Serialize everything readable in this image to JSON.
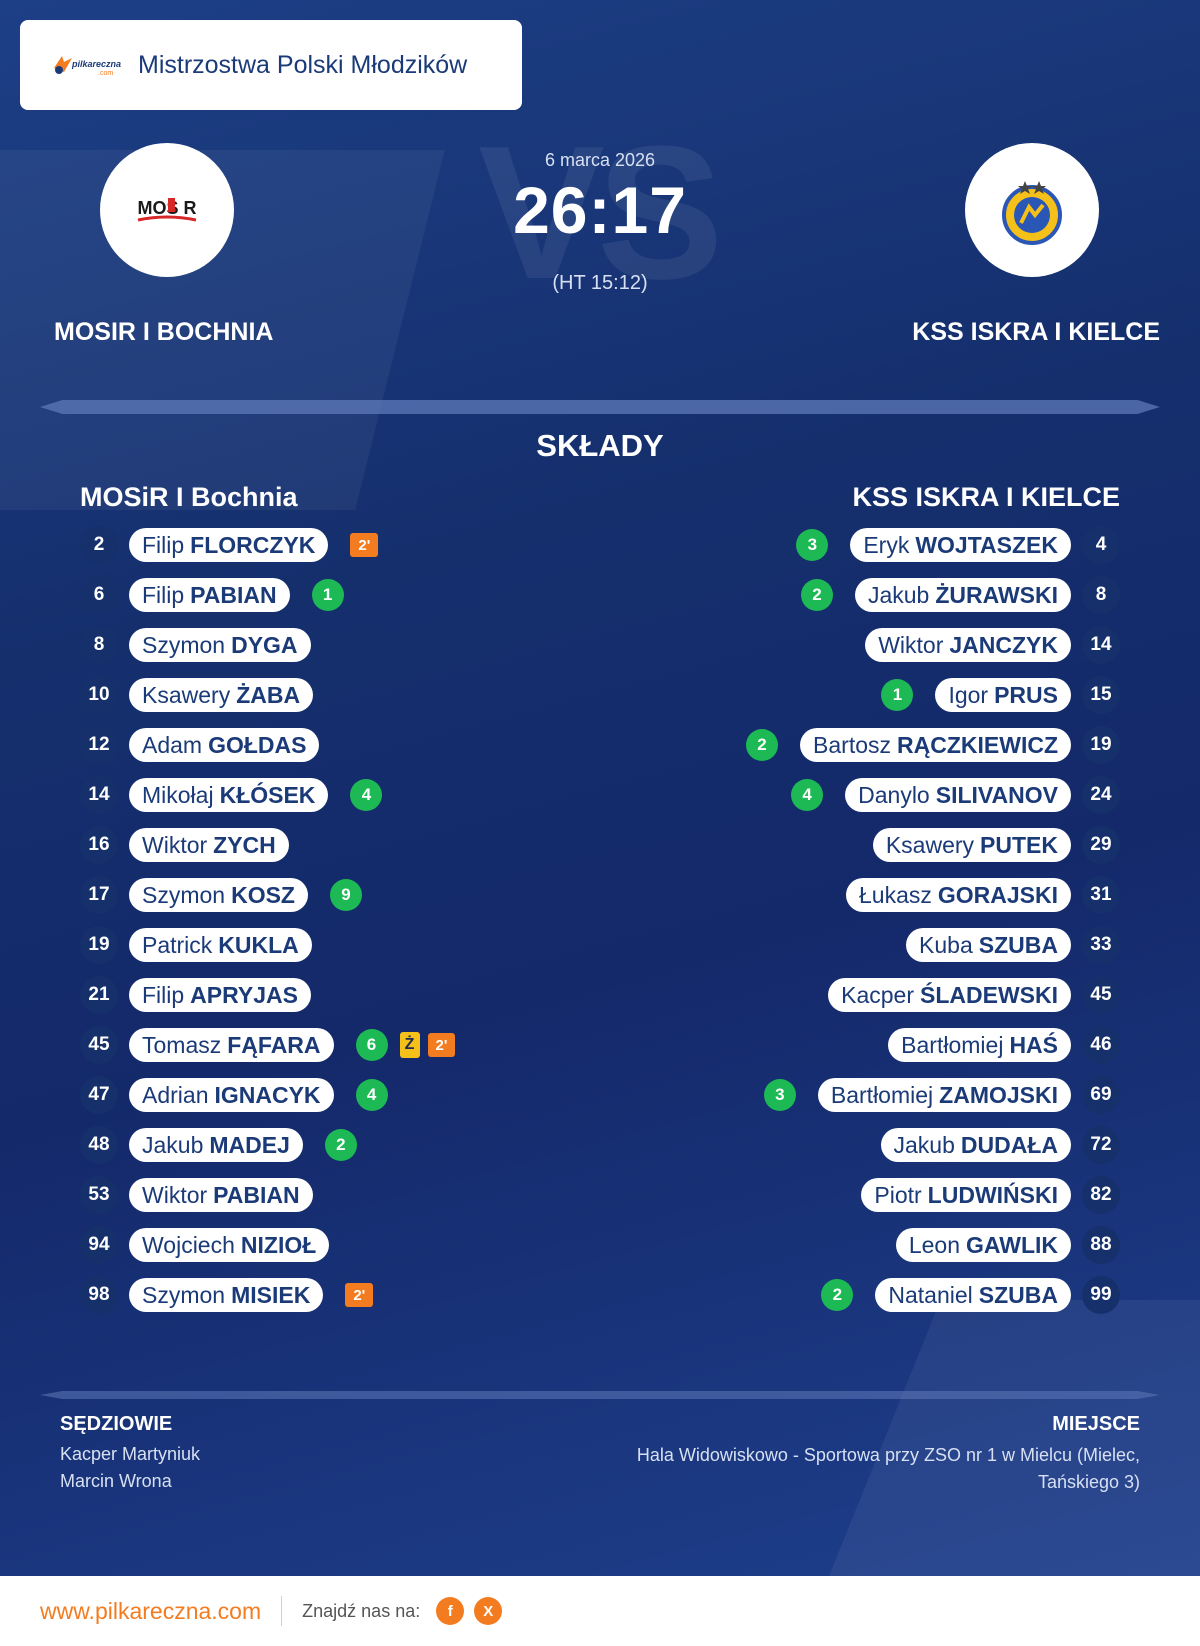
{
  "header": {
    "title": "Mistrzostwa Polski Młodzików",
    "logo_text": "pilkareczna .com"
  },
  "match": {
    "date": "6 marca 2026",
    "score": "26:17",
    "halftime": "(HT 15:12)",
    "bg_text": "VS"
  },
  "home": {
    "name": "MOSIR I BOCHNIA",
    "logo_text": "MOSIR"
  },
  "away": {
    "name": "KSS ISKRA I KIELCE"
  },
  "lineups": {
    "title": "SKŁADY",
    "home_title": "MOSiR I Bochnia",
    "away_title": "KSS ISKRA I KIELCE",
    "home_players": [
      {
        "num": "2",
        "first": "Filip",
        "last": "FLORCZYK",
        "goals": "",
        "yellow": "",
        "susp": "2'"
      },
      {
        "num": "6",
        "first": "Filip",
        "last": "PABIAN",
        "goals": "1",
        "yellow": "",
        "susp": ""
      },
      {
        "num": "8",
        "first": "Szymon",
        "last": "DYGA",
        "goals": "",
        "yellow": "",
        "susp": ""
      },
      {
        "num": "10",
        "first": "Ksawery",
        "last": "ŻABA",
        "goals": "",
        "yellow": "",
        "susp": ""
      },
      {
        "num": "12",
        "first": "Adam",
        "last": "GOŁDAS",
        "goals": "",
        "yellow": "",
        "susp": ""
      },
      {
        "num": "14",
        "first": "Mikołaj",
        "last": "KŁÓSEK",
        "goals": "4",
        "yellow": "",
        "susp": ""
      },
      {
        "num": "16",
        "first": "Wiktor",
        "last": "ZYCH",
        "goals": "",
        "yellow": "",
        "susp": ""
      },
      {
        "num": "17",
        "first": "Szymon",
        "last": "KOSZ",
        "goals": "9",
        "yellow": "",
        "susp": ""
      },
      {
        "num": "19",
        "first": "Patrick",
        "last": "KUKLA",
        "goals": "",
        "yellow": "",
        "susp": ""
      },
      {
        "num": "21",
        "first": "Filip",
        "last": "APRYJAS",
        "goals": "",
        "yellow": "",
        "susp": ""
      },
      {
        "num": "45",
        "first": "Tomasz",
        "last": "FĄFARA",
        "goals": "6",
        "yellow": "Ż",
        "susp": "2'"
      },
      {
        "num": "47",
        "first": "Adrian",
        "last": "IGNACYK",
        "goals": "4",
        "yellow": "",
        "susp": ""
      },
      {
        "num": "48",
        "first": "Jakub",
        "last": "MADEJ",
        "goals": "2",
        "yellow": "",
        "susp": ""
      },
      {
        "num": "53",
        "first": "Wiktor",
        "last": "PABIAN",
        "goals": "",
        "yellow": "",
        "susp": ""
      },
      {
        "num": "94",
        "first": "Wojciech",
        "last": "NIZIOŁ",
        "goals": "",
        "yellow": "",
        "susp": ""
      },
      {
        "num": "98",
        "first": "Szymon",
        "last": "MISIEK",
        "goals": "",
        "yellow": "",
        "susp": "2'"
      }
    ],
    "away_players": [
      {
        "num": "4",
        "first": "Eryk",
        "last": "WOJTASZEK",
        "goals": "3"
      },
      {
        "num": "8",
        "first": "Jakub",
        "last": "ŻURAWSKI",
        "goals": "2"
      },
      {
        "num": "14",
        "first": "Wiktor",
        "last": "JANCZYK",
        "goals": ""
      },
      {
        "num": "15",
        "first": "Igor",
        "last": "PRUS",
        "goals": "1"
      },
      {
        "num": "19",
        "first": "Bartosz",
        "last": "RĄCZKIEWICZ",
        "goals": "2"
      },
      {
        "num": "24",
        "first": "Danylo",
        "last": "SILIVANOV",
        "goals": "4"
      },
      {
        "num": "29",
        "first": "Ksawery",
        "last": "PUTEK",
        "goals": ""
      },
      {
        "num": "31",
        "first": "Łukasz",
        "last": "GORAJSKI",
        "goals": ""
      },
      {
        "num": "33",
        "first": "Kuba",
        "last": "SZUBA",
        "goals": ""
      },
      {
        "num": "45",
        "first": "Kacper",
        "last": "ŚLADEWSKI",
        "goals": ""
      },
      {
        "num": "46",
        "first": "Bartłomiej",
        "last": "HAŚ",
        "goals": ""
      },
      {
        "num": "69",
        "first": "Bartłomiej",
        "last": "ZAMOJSKI",
        "goals": "3"
      },
      {
        "num": "72",
        "first": "Jakub",
        "last": "DUDAŁA",
        "goals": ""
      },
      {
        "num": "82",
        "first": "Piotr",
        "last": "LUDWIŃSKI",
        "goals": ""
      },
      {
        "num": "88",
        "first": "Leon",
        "last": "GAWLIK",
        "goals": ""
      },
      {
        "num": "99",
        "first": "Nataniel",
        "last": "SZUBA",
        "goals": "2"
      }
    ]
  },
  "footer": {
    "referees_title": "SĘDZIOWIE",
    "referees": [
      "Kacper Martyniuk",
      "Marcin Wrona"
    ],
    "venue_title": "MIEJSCE",
    "venue": "Hala Widowiskowo - Sportowa przy ZSO nr 1 w Mielcu (Mielec, Tańskiego 3)"
  },
  "bottom": {
    "site": "www.pilkareczna.com",
    "find_us": "Znajdź nas na:",
    "social": [
      {
        "icon": "facebook-icon",
        "glyph": "f"
      },
      {
        "icon": "x-icon",
        "glyph": "X"
      }
    ]
  },
  "colors": {
    "background": "#152f6d",
    "accent": "#f47c20",
    "goal": "#1db954",
    "yellow_card": "#f5c01a",
    "text_dark": "#1b3a78"
  }
}
